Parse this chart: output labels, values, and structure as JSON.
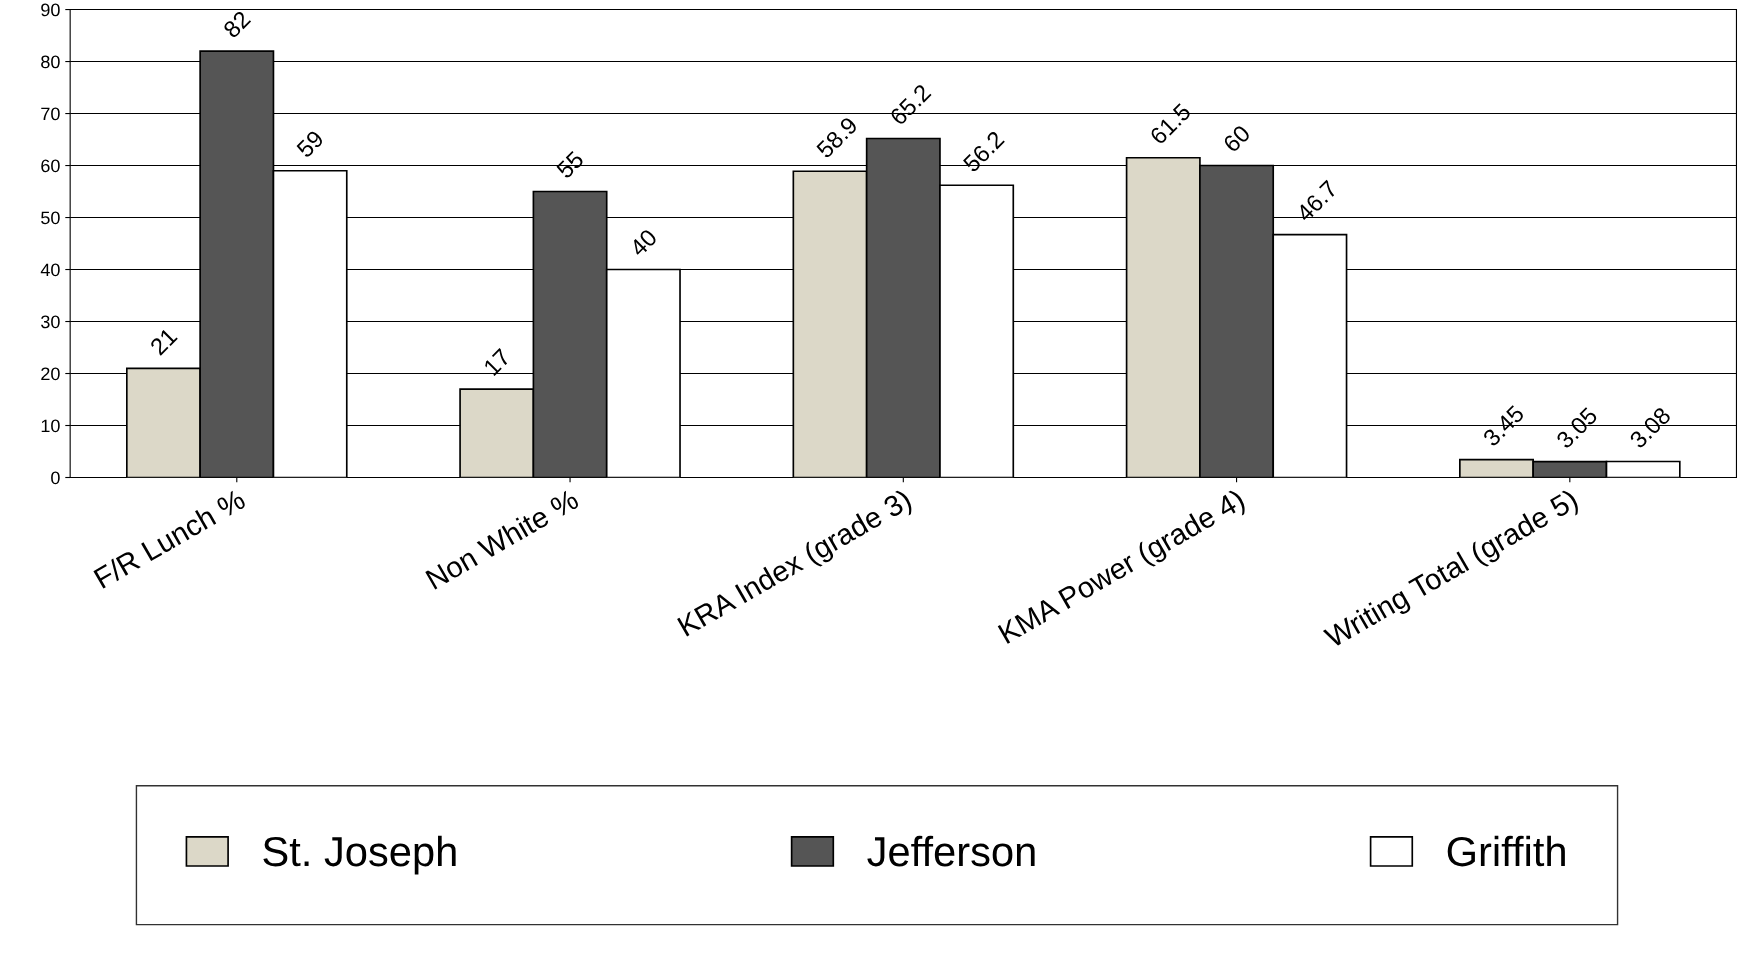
{
  "chart_data": {
    "type": "bar",
    "categories": [
      "F/R Lunch %",
      "Non White %",
      "KRA Index (grade 3)",
      "KMA Power (grade 4)",
      "Writing Total (grade 5)"
    ],
    "series": [
      {
        "name": "St. Joseph",
        "color": "#dcd8c8",
        "values": [
          21,
          17,
          58.9,
          61.5,
          3.45
        ]
      },
      {
        "name": "Jefferson",
        "color": "#555555",
        "values": [
          82,
          55,
          65.2,
          60,
          3.05
        ]
      },
      {
        "name": "Griffith",
        "color": "#ffffff",
        "values": [
          59,
          40,
          56.2,
          46.7,
          3.08
        ]
      }
    ],
    "ylim": [
      0,
      90
    ],
    "yticks": [
      0,
      10,
      20,
      30,
      40,
      50,
      60,
      70,
      80,
      90
    ],
    "grid": "y",
    "legend": "bottom",
    "data_labels": true
  }
}
